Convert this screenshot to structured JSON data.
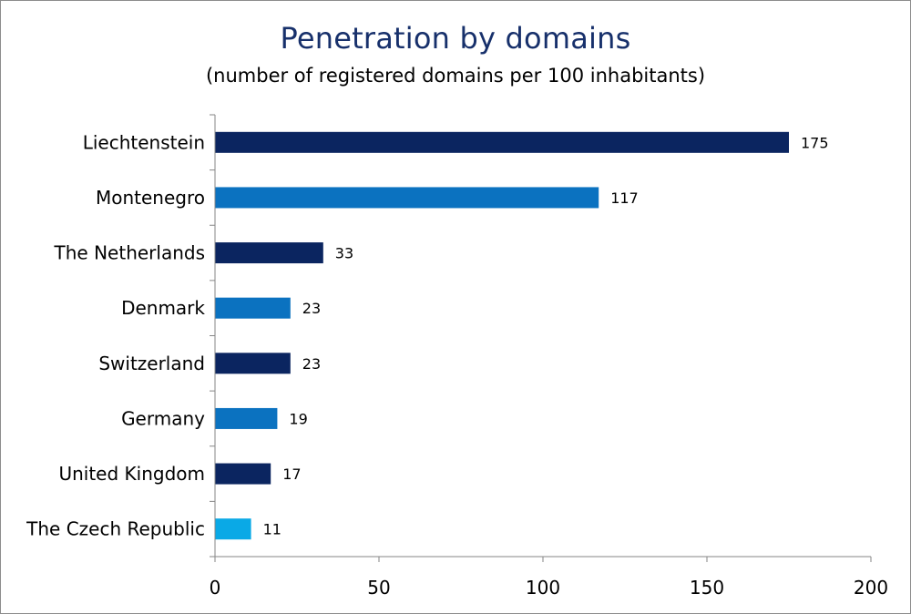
{
  "chart_data": {
    "type": "bar",
    "orientation": "horizontal",
    "title": "Penetration by domains",
    "subtitle": "(number of registered domains per 100 inhabitants)",
    "categories": [
      "Liechtenstein",
      "Montenegro",
      "The Netherlands",
      "Denmark",
      "Switzerland",
      "Germany",
      "United Kingdom",
      "The Czech Republic"
    ],
    "values": [
      175,
      117,
      33,
      23,
      23,
      19,
      17,
      11
    ],
    "data_labels": [
      "175",
      "117",
      "33",
      "23",
      "23",
      "19",
      "17",
      "11"
    ],
    "bar_colors": [
      "#0b2560",
      "#0b72c0",
      "#0b2560",
      "#0b72c0",
      "#0b2560",
      "#0b72c0",
      "#0b2560",
      "#0aa9e6"
    ],
    "xlim": [
      0,
      200
    ],
    "x_ticks": [
      0,
      50,
      100,
      150,
      200
    ],
    "x_tick_labels": [
      "0",
      "50",
      "100",
      "150",
      "200"
    ],
    "grid": false,
    "legend": "none"
  }
}
